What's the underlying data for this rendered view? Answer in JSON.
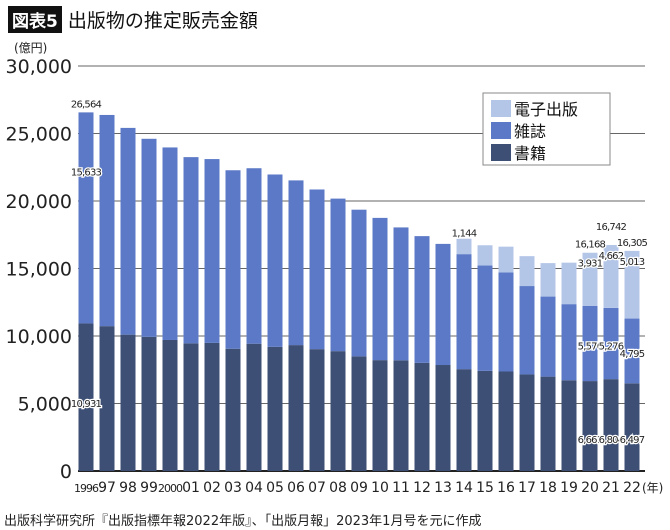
{
  "header": {
    "badge": "図表5",
    "title": "出版物の推定販売金額"
  },
  "source": "出版科学研究所『出版指標年報2022年版』、「出版月報」2023年1月号を元に作成",
  "chart_data": {
    "type": "bar",
    "stacked": true,
    "ylabel": "(億円)",
    "xlabel_suffix": "(年)",
    "ylim": [
      0,
      30000
    ],
    "yticks": [
      "0",
      "5,000",
      "10,000",
      "15,000",
      "20,000",
      "25,000",
      "30,000"
    ],
    "ytick_values": [
      0,
      5000,
      10000,
      15000,
      20000,
      25000,
      30000
    ],
    "grid": true,
    "legend_position": "top-right",
    "categories": [
      "1996",
      "97",
      "98",
      "99",
      "2000",
      "01",
      "02",
      "03",
      "04",
      "05",
      "06",
      "07",
      "08",
      "09",
      "10",
      "11",
      "12",
      "13",
      "14",
      "15",
      "16",
      "17",
      "18",
      "19",
      "20",
      "21",
      "22"
    ],
    "series": [
      {
        "name": "書籍",
        "color": "#3d4f75",
        "values": [
          10931,
          10730,
          10100,
          9936,
          9706,
          9456,
          9490,
          9056,
          9429,
          9197,
          9326,
          9026,
          8878,
          8492,
          8213,
          8199,
          8013,
          7851,
          7544,
          7419,
          7370,
          7152,
          6991,
          6723,
          6661,
          6804,
          6497
        ]
      },
      {
        "name": "雑誌",
        "color": "#5b79c6",
        "values": [
          15633,
          15644,
          15315,
          14672,
          14261,
          13794,
          13616,
          13222,
          12998,
          12767,
          12200,
          11827,
          11299,
          10864,
          10536,
          9844,
          9385,
          8972,
          8520,
          7801,
          7339,
          6548,
          5930,
          5637,
          5576,
          5276,
          4795
        ]
      },
      {
        "name": "電子出版",
        "color": "#b4c6e8",
        "values": [
          0,
          0,
          0,
          0,
          0,
          0,
          0,
          0,
          0,
          0,
          0,
          0,
          0,
          0,
          0,
          0,
          0,
          0,
          1144,
          1502,
          1909,
          2215,
          2479,
          3072,
          3931,
          4662,
          5013
        ]
      }
    ],
    "legend_order": [
      "電子出版",
      "雑誌",
      "書籍"
    ],
    "data_labels": [
      {
        "category": "1996",
        "series": "total",
        "text": "26,564"
      },
      {
        "category": "1996",
        "series": "雑誌",
        "text": "15,633"
      },
      {
        "category": "1996",
        "series": "書籍",
        "text": "10,931"
      },
      {
        "category": "14",
        "series": "電子出版",
        "text": "1,144"
      },
      {
        "category": "20",
        "series": "total",
        "text": "16,168"
      },
      {
        "category": "20",
        "series": "電子出版",
        "text": "3,931"
      },
      {
        "category": "20",
        "series": "雑誌",
        "text": "5,576"
      },
      {
        "category": "20",
        "series": "書籍",
        "text": "6,661"
      },
      {
        "category": "21",
        "series": "total",
        "text": "16,742"
      },
      {
        "category": "21",
        "series": "電子出版",
        "text": "4,662"
      },
      {
        "category": "21",
        "series": "雑誌",
        "text": "5,276"
      },
      {
        "category": "21",
        "series": "書籍",
        "text": "6,804"
      },
      {
        "category": "22",
        "series": "total",
        "text": "16,305"
      },
      {
        "category": "22",
        "series": "電子出版",
        "text": "5,013"
      },
      {
        "category": "22",
        "series": "雑誌",
        "text": "4,795"
      },
      {
        "category": "22",
        "series": "書籍",
        "text": "6,497"
      }
    ]
  }
}
